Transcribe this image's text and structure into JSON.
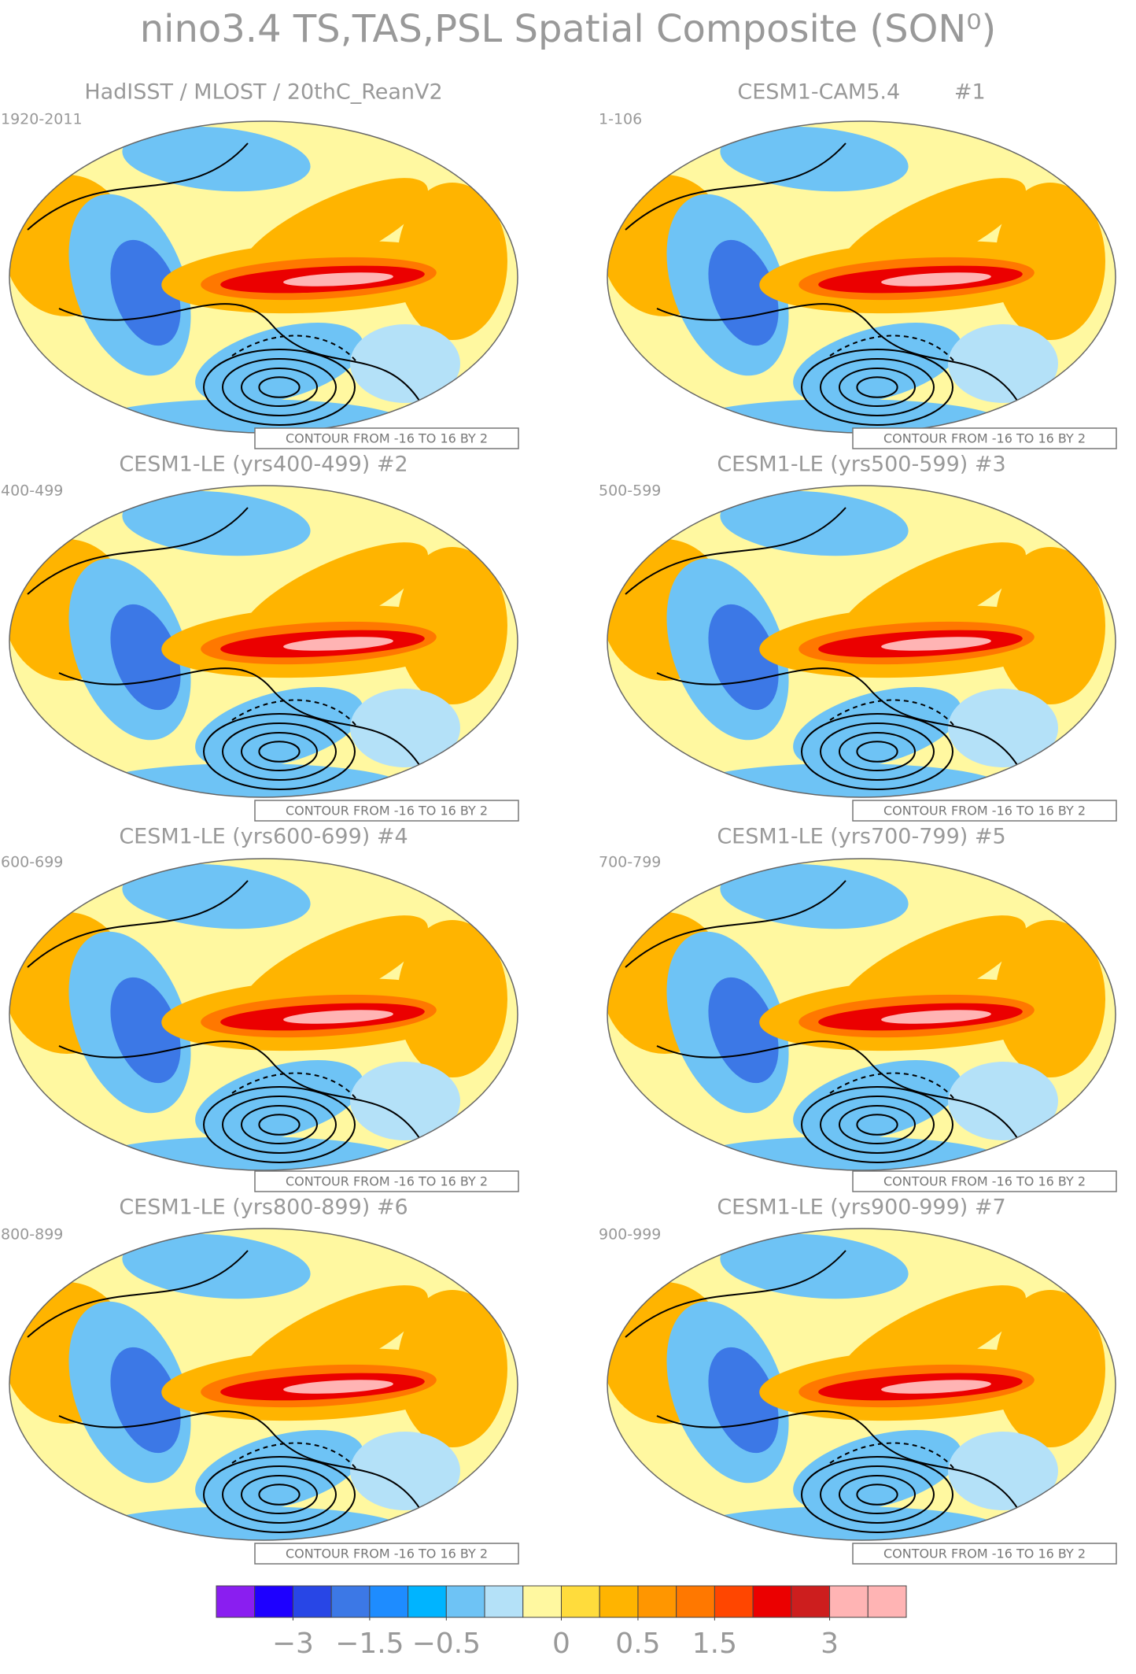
{
  "title": "nino3.4 TS,TAS,PSL Spatial Composite (SON⁰)",
  "panels": [
    {
      "title": "HadISST / MLOST / 20thC_ReanV2",
      "period": "1920-2011",
      "note": "CONTOUR FROM -16 TO 16 BY 2"
    },
    {
      "title": "CESM1-CAM5.4        #1",
      "period": "1-106",
      "note": "CONTOUR FROM -16 TO 16 BY 2"
    },
    {
      "title": "CESM1-LE (yrs400-499) #2",
      "period": "400-499",
      "note": "CONTOUR FROM -16 TO 16 BY 2"
    },
    {
      "title": "CESM1-LE (yrs500-599) #3",
      "period": "500-599",
      "note": "CONTOUR FROM -16 TO 16 BY 2"
    },
    {
      "title": "CESM1-LE (yrs600-699) #4",
      "period": "600-699",
      "note": "CONTOUR FROM -16 TO 16 BY 2"
    },
    {
      "title": "CESM1-LE (yrs700-799) #5",
      "period": "700-799",
      "note": "CONTOUR FROM -16 TO 16 BY 2"
    },
    {
      "title": "CESM1-LE (yrs800-899) #6",
      "period": "800-899",
      "note": "CONTOUR FROM -16 TO 16 BY 2"
    },
    {
      "title": "CESM1-LE (yrs900-999) #7",
      "period": "900-999",
      "note": "CONTOUR FROM -16 TO 16 BY 2"
    }
  ],
  "colorbar": {
    "colors": [
      "#8a1ef0",
      "#1e00ff",
      "#2846e6",
      "#3c78e6",
      "#1e8cff",
      "#00b4ff",
      "#6ec3f5",
      "#b4e1f8",
      "#fff8a0",
      "#ffdc3c",
      "#ffb400",
      "#ff9600",
      "#ff7800",
      "#ff4600",
      "#eb0000",
      "#cd1e1e",
      "#ffb4b4",
      "#ffb4b4"
    ],
    "levels": [
      -4,
      -3,
      -2,
      -1.5,
      -1,
      -0.5,
      -0.25,
      -0.1,
      0,
      0.25,
      0.5,
      1,
      1.5,
      2,
      2.5,
      3,
      4
    ],
    "ticks": [
      {
        "value": -3,
        "label": "−3"
      },
      {
        "value": -1.5,
        "label": "−1.5"
      },
      {
        "value": -0.5,
        "label": "−0.5"
      },
      0,
      0.5,
      1.5,
      3
    ]
  }
}
